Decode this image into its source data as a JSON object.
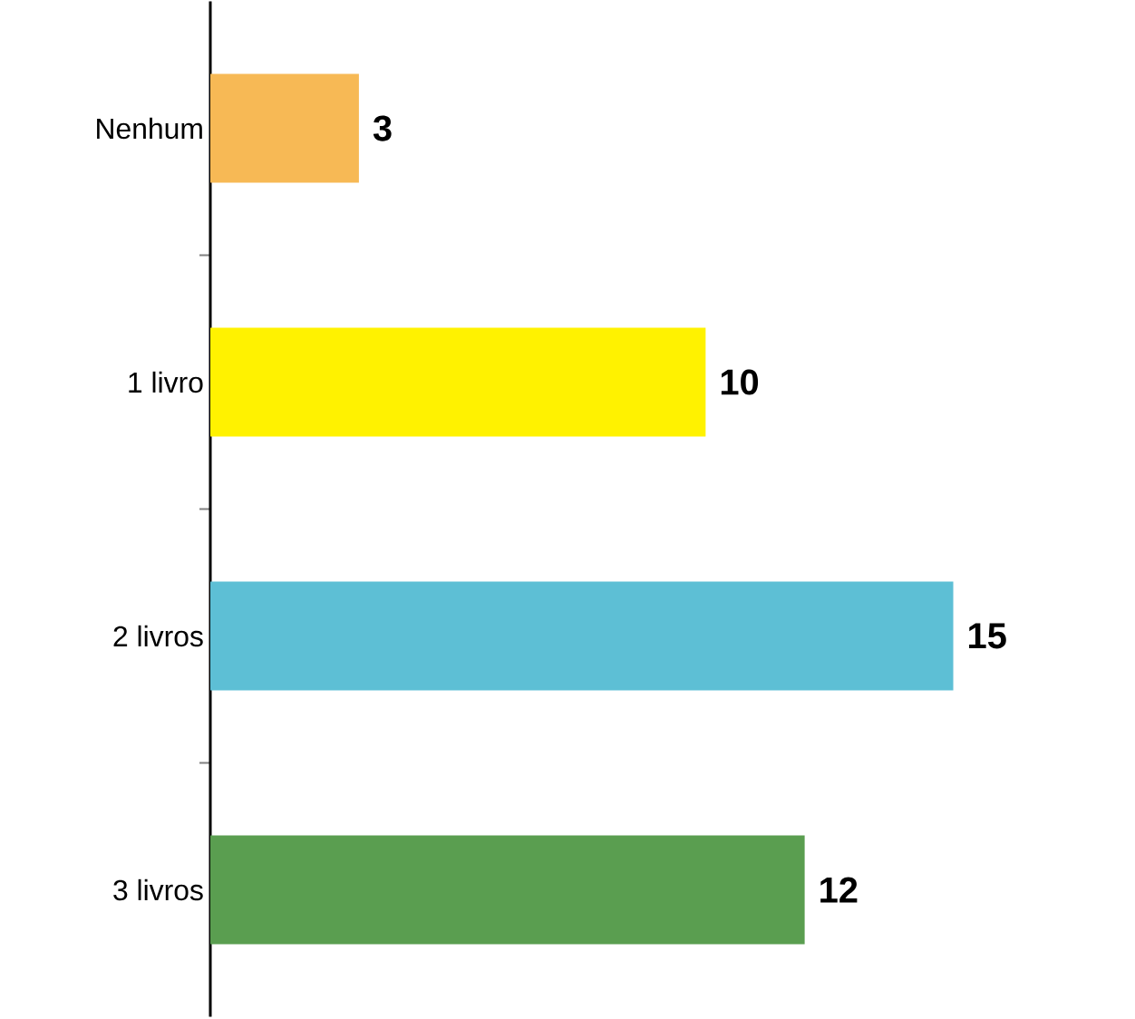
{
  "chart_data": {
    "type": "bar",
    "orientation": "horizontal",
    "categories": [
      "Nenhum",
      "1 livro",
      "2 livros",
      "3 livros"
    ],
    "values": [
      3,
      10,
      15,
      12
    ],
    "colors": [
      "#f7b955",
      "#fff200",
      "#5dbfd5",
      "#5a9e50"
    ],
    "data_labels": true
  }
}
